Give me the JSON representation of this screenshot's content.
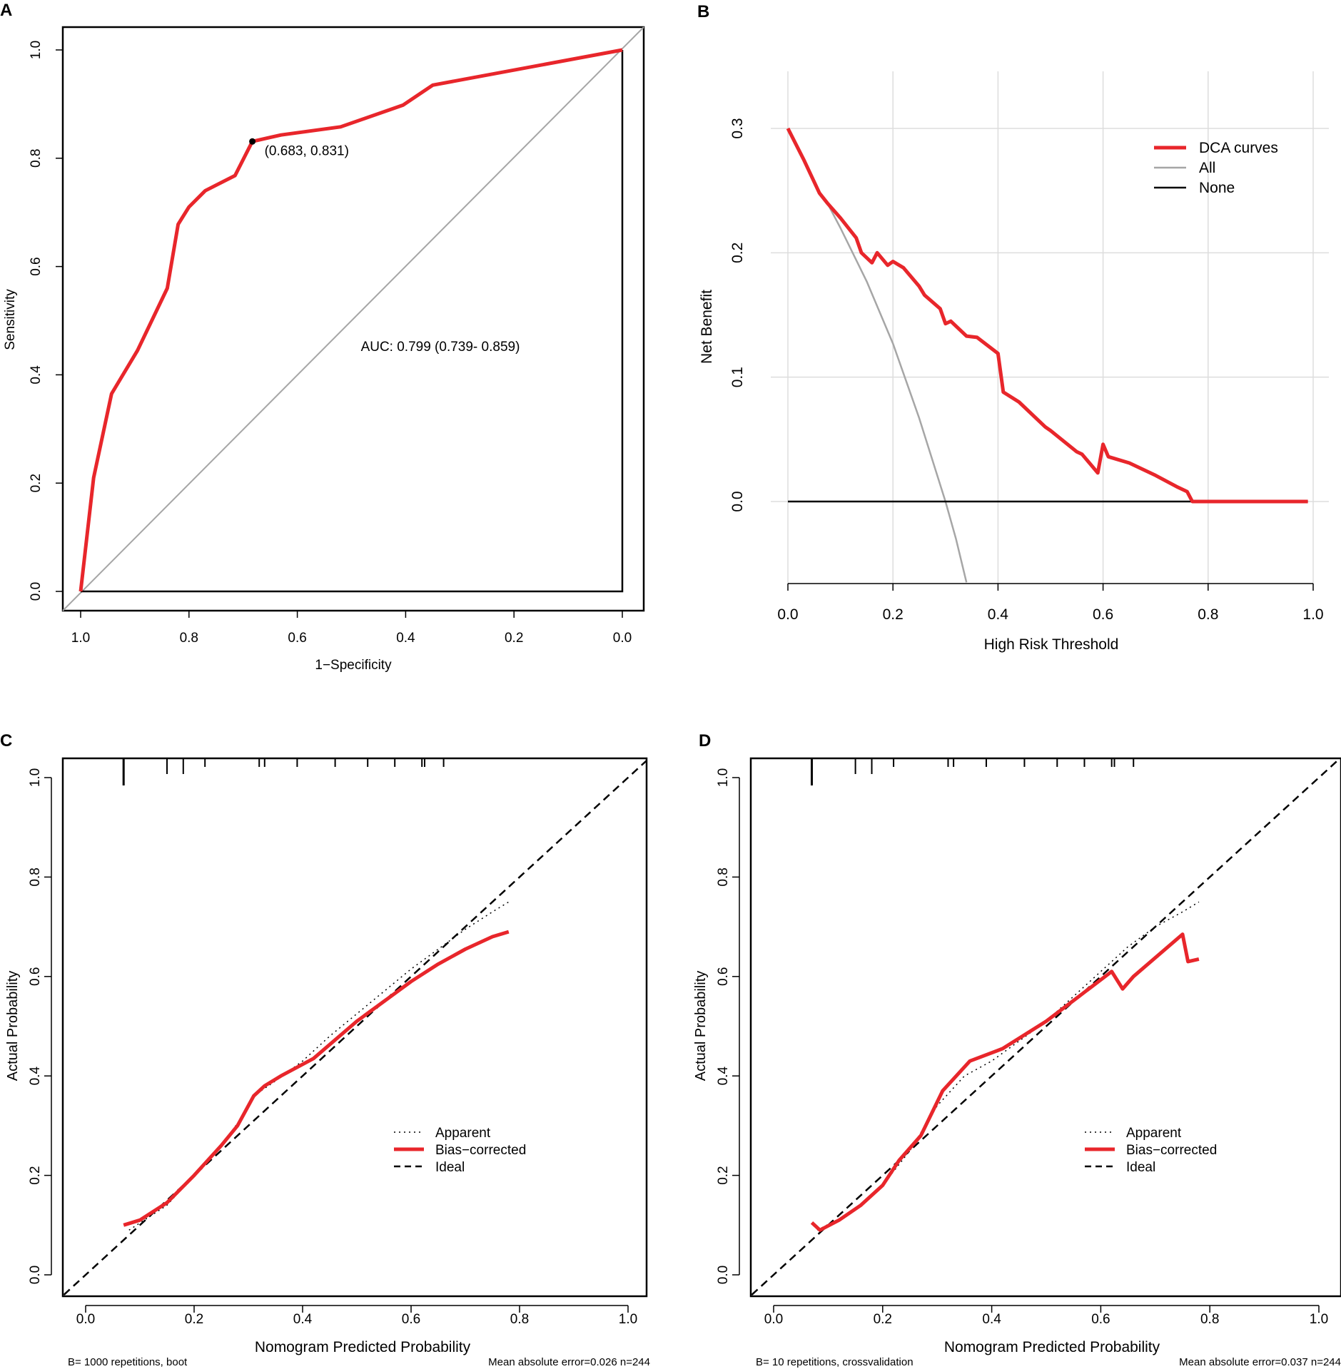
{
  "colors": {
    "red": "#e8262b",
    "grey": "#a6a6a6",
    "grid": "#dddddd",
    "black": "#000000"
  },
  "chart_data": [
    {
      "panel": "A",
      "type": "line",
      "xlabel": "1−Specificity",
      "ylabel": "Sensitivity",
      "xlim": [
        1.0,
        0.0
      ],
      "ylim": [
        0.0,
        1.0
      ],
      "x_ticks": [
        "1.0",
        "0.8",
        "0.6",
        "0.4",
        "0.2",
        "0.0"
      ],
      "y_ticks": [
        "0.0",
        "0.2",
        "0.4",
        "0.6",
        "0.8",
        "1.0"
      ],
      "series": [
        {
          "name": "ROC curve",
          "x": [
            1.0,
            0.976,
            0.943,
            0.895,
            0.84,
            0.82,
            0.8,
            0.77,
            0.715,
            0.683,
            0.63,
            0.52,
            0.405,
            0.35,
            0.0
          ],
          "y": [
            0.0,
            0.21,
            0.365,
            0.445,
            0.56,
            0.678,
            0.71,
            0.74,
            0.768,
            0.831,
            0.843,
            0.858,
            0.898,
            0.935,
            1.0
          ]
        },
        {
          "name": "Reference diagonal",
          "x": [
            1.0,
            0.0
          ],
          "y": [
            0.0,
            1.0
          ]
        }
      ],
      "marked_point": {
        "x": 0.683,
        "y": 0.831,
        "label": "(0.683, 0.831)"
      },
      "annotation": "AUC: 0.799 (0.739- 0.859)"
    },
    {
      "panel": "B",
      "type": "line",
      "xlabel": "High Risk Threshold",
      "ylabel": "Net Benefit",
      "xlim": [
        0.0,
        1.0
      ],
      "ylim": [
        -0.065,
        0.32
      ],
      "x_ticks": [
        "0.0",
        "0.2",
        "0.4",
        "0.6",
        "0.8",
        "1.0"
      ],
      "y_ticks": [
        "0.0",
        "0.1",
        "0.2",
        "0.3"
      ],
      "grid": true,
      "legend": [
        "DCA curves",
        "All",
        "None"
      ],
      "series": [
        {
          "name": "DCA curves",
          "x": [
            0.0,
            0.03,
            0.06,
            0.075,
            0.1,
            0.13,
            0.14,
            0.16,
            0.17,
            0.19,
            0.2,
            0.22,
            0.25,
            0.26,
            0.29,
            0.3,
            0.31,
            0.34,
            0.36,
            0.4,
            0.41,
            0.44,
            0.49,
            0.5,
            0.55,
            0.56,
            0.59,
            0.6,
            0.61,
            0.65,
            0.7,
            0.74,
            0.76,
            0.77,
            0.99
          ],
          "y": [
            0.3,
            0.275,
            0.248,
            0.24,
            0.228,
            0.212,
            0.2,
            0.192,
            0.2,
            0.19,
            0.193,
            0.188,
            0.173,
            0.166,
            0.155,
            0.143,
            0.145,
            0.133,
            0.132,
            0.119,
            0.088,
            0.08,
            0.06,
            0.057,
            0.04,
            0.038,
            0.023,
            0.046,
            0.036,
            0.031,
            0.021,
            0.012,
            0.008,
            0.0,
            0.0
          ]
        },
        {
          "name": "All",
          "x": [
            0.075,
            0.1,
            0.15,
            0.2,
            0.25,
            0.3,
            0.32,
            0.34
          ],
          "y": [
            0.24,
            0.22,
            0.177,
            0.127,
            0.067,
            0.0,
            -0.03,
            -0.065
          ]
        },
        {
          "name": "None",
          "x": [
            0.0,
            0.99
          ],
          "y": [
            0.0,
            0.0
          ]
        }
      ]
    },
    {
      "panel": "C",
      "type": "line",
      "xlabel": "Nomogram Predicted Probability",
      "ylabel": "Actual Probability",
      "xlim": [
        -0.04,
        1.04
      ],
      "ylim": [
        -0.03,
        1.06
      ],
      "x_ticks": [
        "0.0",
        "0.2",
        "0.4",
        "0.6",
        "0.8",
        "1.0"
      ],
      "y_ticks": [
        "0.0",
        "0.2",
        "0.4",
        "0.6",
        "0.8",
        "1.0"
      ],
      "legend": [
        "Apparent",
        "Bias−corrected",
        "Ideal"
      ],
      "footer_left": "B= 1000 repetitions, boot",
      "footer_right": "Mean absolute error=0.026 n=244",
      "rug_x": [
        0.07,
        0.15,
        0.18,
        0.22,
        0.32,
        0.33,
        0.39,
        0.46,
        0.52,
        0.57,
        0.62,
        0.625,
        0.66
      ],
      "series": [
        {
          "name": "Apparent",
          "x": [
            0.08,
            0.15,
            0.2,
            0.25,
            0.29,
            0.31,
            0.35,
            0.4,
            0.45,
            0.5,
            0.55,
            0.6,
            0.65,
            0.7,
            0.75,
            0.78
          ],
          "y": [
            0.09,
            0.14,
            0.2,
            0.26,
            0.32,
            0.36,
            0.39,
            0.43,
            0.48,
            0.525,
            0.57,
            0.615,
            0.655,
            0.695,
            0.73,
            0.75
          ]
        },
        {
          "name": "Bias−corrected",
          "x": [
            0.07,
            0.1,
            0.15,
            0.2,
            0.25,
            0.28,
            0.31,
            0.33,
            0.36,
            0.42,
            0.5,
            0.55,
            0.6,
            0.65,
            0.7,
            0.75,
            0.78
          ],
          "y": [
            0.1,
            0.11,
            0.145,
            0.2,
            0.26,
            0.3,
            0.36,
            0.38,
            0.4,
            0.435,
            0.51,
            0.55,
            0.59,
            0.625,
            0.655,
            0.68,
            0.69
          ]
        },
        {
          "name": "Ideal",
          "x": [
            -0.04,
            1.04
          ],
          "y": [
            -0.04,
            1.04
          ]
        }
      ]
    },
    {
      "panel": "D",
      "type": "line",
      "xlabel": "Nomogram Predicted Probability",
      "ylabel": "Actual Probability",
      "xlim": [
        -0.04,
        1.04
      ],
      "ylim": [
        -0.03,
        1.06
      ],
      "x_ticks": [
        "0.0",
        "0.2",
        "0.4",
        "0.6",
        "0.8",
        "1.0"
      ],
      "y_ticks": [
        "0.0",
        "0.2",
        "0.4",
        "0.6",
        "0.8",
        "1.0"
      ],
      "legend": [
        "Apparent",
        "Bias−corrected",
        "Ideal"
      ],
      "footer_left": "B= 10 repetitions, crossvalidation",
      "footer_right": "Mean absolute error=0.037 n=244",
      "rug_x": [
        0.07,
        0.15,
        0.18,
        0.22,
        0.32,
        0.33,
        0.39,
        0.46,
        0.52,
        0.57,
        0.62,
        0.625,
        0.66
      ],
      "series": [
        {
          "name": "Apparent",
          "x": [
            0.08,
            0.15,
            0.2,
            0.25,
            0.3,
            0.35,
            0.4,
            0.45,
            0.5,
            0.55,
            0.6,
            0.65,
            0.7,
            0.75,
            0.78
          ],
          "y": [
            0.09,
            0.13,
            0.18,
            0.25,
            0.34,
            0.4,
            0.43,
            0.47,
            0.51,
            0.56,
            0.61,
            0.66,
            0.7,
            0.73,
            0.75
          ]
        },
        {
          "name": "Bias−corrected",
          "x": [
            0.07,
            0.085,
            0.12,
            0.16,
            0.2,
            0.23,
            0.27,
            0.31,
            0.36,
            0.42,
            0.5,
            0.56,
            0.62,
            0.64,
            0.66,
            0.75,
            0.76,
            0.78
          ],
          "y": [
            0.105,
            0.09,
            0.11,
            0.14,
            0.18,
            0.23,
            0.28,
            0.37,
            0.43,
            0.455,
            0.51,
            0.56,
            0.61,
            0.575,
            0.6,
            0.685,
            0.63,
            0.635
          ]
        },
        {
          "name": "Ideal",
          "x": [
            -0.04,
            1.04
          ],
          "y": [
            -0.04,
            1.04
          ]
        }
      ]
    }
  ]
}
